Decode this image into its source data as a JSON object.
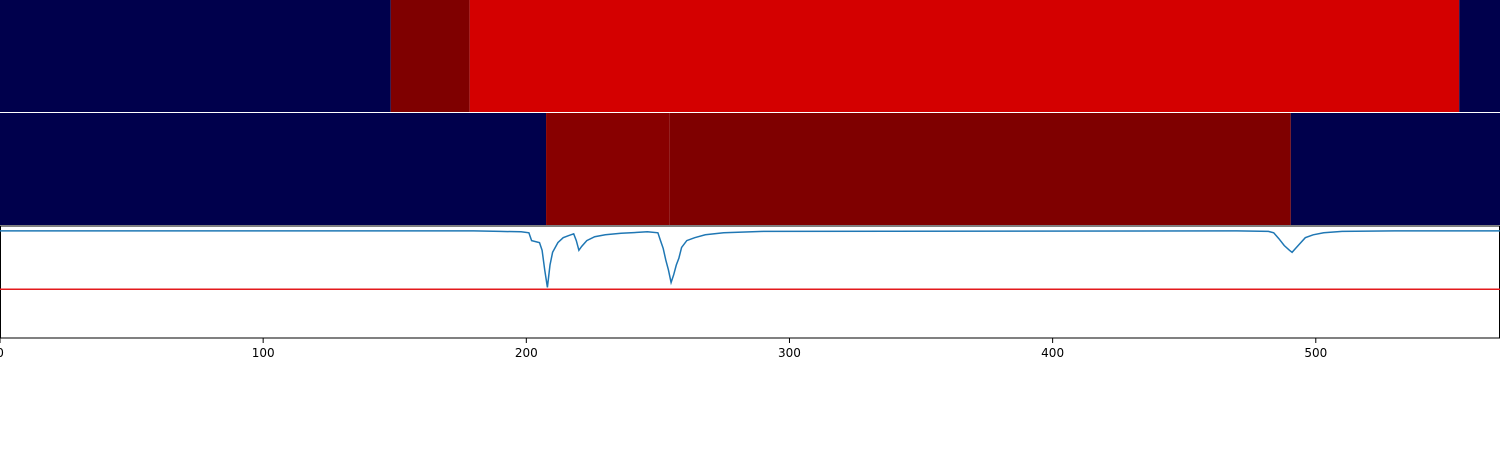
{
  "chart_data": {
    "type": "heatmap",
    "title": "",
    "xlabel": "",
    "ylabel": "",
    "xlim": [
      0,
      570
    ],
    "x_ticks": [
      "0",
      "100",
      "200",
      "300",
      "400",
      "500"
    ],
    "x_tick_values": [
      0,
      100,
      200,
      300,
      400,
      500
    ],
    "rows": [
      {
        "segments": [
          {
            "x0": 0,
            "x1": 148.5,
            "color": "#00004c"
          },
          {
            "x0": 148.5,
            "x1": 178.5,
            "color": "#7f0000"
          },
          {
            "x0": 178.5,
            "x1": 554.5,
            "color": "#d40000"
          },
          {
            "x0": 554.5,
            "x1": 570,
            "color": "#00004c"
          }
        ]
      },
      {
        "segments": [
          {
            "x0": 0,
            "x1": 207.5,
            "color": "#00004c"
          },
          {
            "x0": 207.5,
            "x1": 254.5,
            "color": "#880000"
          },
          {
            "x0": 254.5,
            "x1": 490.5,
            "color": "#7f0000"
          },
          {
            "x0": 490.5,
            "x1": 570,
            "color": "#00004c"
          }
        ]
      }
    ],
    "line_panel": {
      "ylim": [
        -1.1,
        0.05
      ],
      "threshold": -0.6,
      "threshold_color": "#e31a1c",
      "line_color": "#1f77b4",
      "points": [
        [
          0,
          0.0
        ],
        [
          180,
          0.0
        ],
        [
          190,
          -0.005
        ],
        [
          198,
          -0.01
        ],
        [
          201,
          -0.02
        ],
        [
          202,
          -0.1
        ],
        [
          205,
          -0.12
        ],
        [
          206,
          -0.2
        ],
        [
          207,
          -0.4
        ],
        [
          208,
          -0.58
        ],
        [
          209,
          -0.35
        ],
        [
          210,
          -0.22
        ],
        [
          212,
          -0.12
        ],
        [
          214,
          -0.07
        ],
        [
          216,
          -0.05
        ],
        [
          218,
          -0.03
        ],
        [
          219,
          -0.1
        ],
        [
          220,
          -0.2
        ],
        [
          221,
          -0.16
        ],
        [
          223,
          -0.1
        ],
        [
          226,
          -0.06
        ],
        [
          230,
          -0.04
        ],
        [
          236,
          -0.025
        ],
        [
          246,
          -0.01
        ],
        [
          250,
          -0.02
        ],
        [
          251,
          -0.1
        ],
        [
          252,
          -0.18
        ],
        [
          253,
          -0.3
        ],
        [
          254,
          -0.4
        ],
        [
          255,
          -0.53
        ],
        [
          256,
          -0.45
        ],
        [
          257,
          -0.35
        ],
        [
          258,
          -0.28
        ],
        [
          259,
          -0.17
        ],
        [
          261,
          -0.1
        ],
        [
          264,
          -0.07
        ],
        [
          268,
          -0.04
        ],
        [
          275,
          -0.02
        ],
        [
          290,
          -0.005
        ],
        [
          470,
          0.0
        ],
        [
          482,
          -0.005
        ],
        [
          484,
          -0.02
        ],
        [
          486,
          -0.08
        ],
        [
          488,
          -0.15
        ],
        [
          490,
          -0.2
        ],
        [
          491,
          -0.22
        ],
        [
          492,
          -0.19
        ],
        [
          494,
          -0.13
        ],
        [
          496,
          -0.07
        ],
        [
          499,
          -0.04
        ],
        [
          503,
          -0.02
        ],
        [
          510,
          -0.005
        ],
        [
          530,
          0.0
        ],
        [
          570,
          0.0
        ]
      ]
    }
  }
}
